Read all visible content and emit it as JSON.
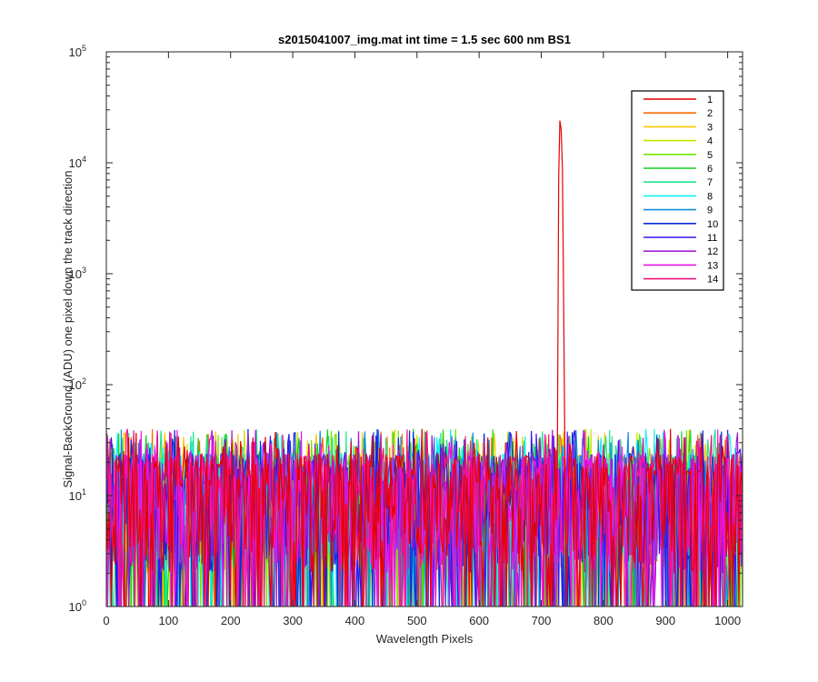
{
  "chart_data": {
    "type": "line",
    "title": "s2015041007_img.mat int time = 1.5 sec  600 nm BS1",
    "xlabel": "Wavelength Pixels",
    "ylabel": "Signal-BackGround (ADU) one pixel down the track direction",
    "xlim": [
      0,
      1024
    ],
    "ylim": [
      1,
      100000
    ],
    "yscale": "log",
    "xticks": [
      0,
      100,
      200,
      300,
      400,
      500,
      600,
      700,
      800,
      900,
      1000
    ],
    "xtick_labels": [
      "0",
      "100",
      "200",
      "300",
      "400",
      "500",
      "600",
      "700",
      "800",
      "900",
      "1000"
    ],
    "yticks": [
      1,
      10,
      100,
      1000,
      10000,
      100000
    ],
    "ytick_labels": [
      {
        "base": "10",
        "exp": "0"
      },
      {
        "base": "10",
        "exp": "1"
      },
      {
        "base": "10",
        "exp": "2"
      },
      {
        "base": "10",
        "exp": "3"
      },
      {
        "base": "10",
        "exp": "4"
      },
      {
        "base": "10",
        "exp": "5"
      }
    ],
    "grid": false,
    "legend_position": "top-right",
    "noise_floor_description_values": {
      "typical_min": 1,
      "typical_max": 40
    },
    "peak": {
      "series": "1",
      "x": [
        726,
        728,
        730,
        732,
        734,
        736,
        738
      ],
      "y": [
        30,
        7500,
        24000,
        20000,
        9000,
        600,
        25
      ]
    },
    "series": [
      {
        "name": "1",
        "color": "#e60000"
      },
      {
        "name": "2",
        "color": "#ff6a00"
      },
      {
        "name": "3",
        "color": "#ffc800"
      },
      {
        "name": "4",
        "color": "#c8e600"
      },
      {
        "name": "5",
        "color": "#6ee600"
      },
      {
        "name": "6",
        "color": "#14d21e"
      },
      {
        "name": "7",
        "color": "#1ee68c"
      },
      {
        "name": "8",
        "color": "#14f0f0"
      },
      {
        "name": "9",
        "color": "#148cdc"
      },
      {
        "name": "10",
        "color": "#0a2adc"
      },
      {
        "name": "11",
        "color": "#3c14f0"
      },
      {
        "name": "12",
        "color": "#a01ed2"
      },
      {
        "name": "13",
        "color": "#f014e6"
      },
      {
        "name": "14",
        "color": "#f0147a"
      }
    ]
  }
}
